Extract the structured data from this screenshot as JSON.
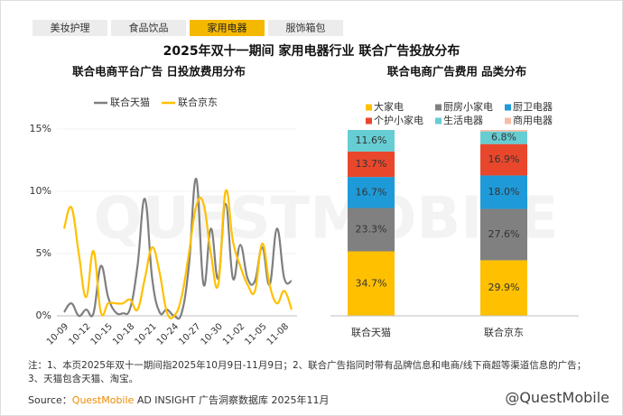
{
  "tabs": [
    "美妆护理",
    "食品饮品",
    "家用电器",
    "服饰箱包"
  ],
  "active_tab": 2,
  "title": "2025年双十一期间 家用电器行业 联合广告投放分布",
  "watermark": "QUESTMOBILE",
  "chart_data": [
    {
      "type": "line",
      "title": "联合电商平台广告 日投放费用分布",
      "categories": [
        "10-09",
        null,
        null,
        "10-12",
        null,
        null,
        "10-15",
        null,
        null,
        "10-18",
        null,
        null,
        "10-21",
        null,
        null,
        "10-24",
        null,
        null,
        "10-27",
        null,
        null,
        "10-30",
        null,
        null,
        "11-02",
        null,
        null,
        "11-05",
        null,
        null,
        "11-08",
        null
      ],
      "series": [
        {
          "name": "联合天猫",
          "color": "#7f7f7f",
          "values": [
            0.3,
            1.0,
            0,
            0.5,
            0.2,
            4.0,
            1.5,
            0.3,
            0.2,
            0.6,
            4.0,
            9.4,
            3.0,
            0.3,
            0.5,
            0,
            0.2,
            4.0,
            11.0,
            2.5,
            7.0,
            3.0,
            9.0,
            3.0,
            5.7,
            3.0,
            2.8,
            5.5,
            2.5,
            7.0,
            3.0,
            2.8
          ]
        },
        {
          "name": "联合京东",
          "color": "#ffc000",
          "values": [
            7.0,
            8.7,
            5.0,
            1.5,
            5.2,
            0.3,
            1.0,
            1.0,
            1.0,
            1.3,
            0.5,
            3.0,
            5.5,
            3.5,
            0.3,
            0,
            1.5,
            5.0,
            8.8,
            9.0,
            5.0,
            2.5,
            10.0,
            6.0,
            4.0,
            2.5,
            2.0,
            5.8,
            2.5,
            1.0,
            2.0,
            0.5
          ]
        }
      ],
      "ylim": [
        0,
        15
      ],
      "yticks": [
        {
          "value": 0,
          "label": "0%"
        },
        {
          "value": 5,
          "label": "5%"
        },
        {
          "value": 10,
          "label": "10%"
        },
        {
          "value": 15,
          "label": "15%"
        }
      ],
      "legend": "top",
      "smooth": true
    },
    {
      "type": "bar",
      "stacked": true,
      "title": "联合电商广告费用 品类分布",
      "categories": [
        "联合天猫",
        "联合京东"
      ],
      "series": [
        {
          "name": "大家电",
          "color": "#ffc000",
          "values": [
            34.7,
            29.9
          ],
          "value_labels": [
            "34.7%",
            "29.9%"
          ]
        },
        {
          "name": "厨房小家电",
          "color": "#808080",
          "values": [
            23.3,
            27.6
          ],
          "value_labels": [
            "23.3%",
            "27.6%"
          ]
        },
        {
          "name": "厨卫电器",
          "color": "#1f9ad8",
          "values": [
            16.7,
            18.0
          ],
          "value_labels": [
            "16.7%",
            "18.0%"
          ]
        },
        {
          "name": "个护小家电",
          "color": "#e9472c",
          "values": [
            13.7,
            16.9
          ],
          "value_labels": [
            "13.7%",
            "16.9%"
          ]
        },
        {
          "name": "生活电器",
          "color": "#66cdd3",
          "values": [
            11.6,
            6.8
          ],
          "value_labels": [
            "11.6%",
            "6.8%"
          ]
        },
        {
          "name": "商用电器",
          "color": "#f8bca6",
          "values": [
            0,
            0.8
          ]
        }
      ],
      "ylim": [
        0,
        100
      ],
      "legend": "top"
    }
  ],
  "note": "注：1、本页2025年双十一期间指2025年10月9日-11月9日；2、联合广告指同时带有品牌信息和电商/线下商超等渠道信息的广告；3、天猫包含天猫、淘宝。",
  "source": {
    "label": "Source：",
    "brand": "QuestMobile",
    "text": "AD INSIGHT 广告洞察数据库 2025年11月"
  },
  "credit": "@QuestMobile"
}
